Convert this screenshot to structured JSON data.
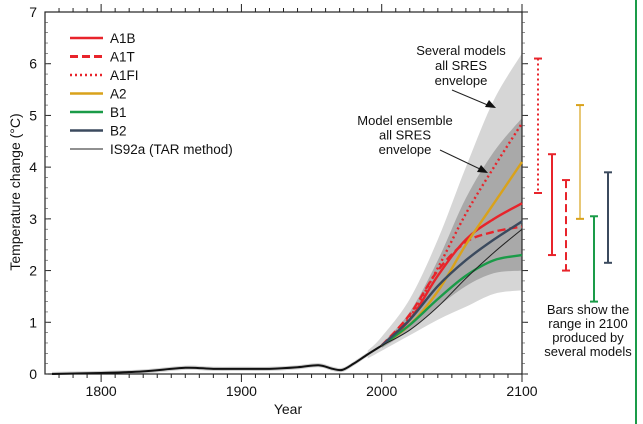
{
  "chart_data": {
    "type": "line",
    "title": "",
    "xlabel": "Year",
    "ylabel": "Temperature change (°C)",
    "xlim": [
      1760,
      2100
    ],
    "ylim": [
      0,
      7
    ],
    "xticks": [
      1800,
      1900,
      2000,
      2100
    ],
    "yticks": [
      0,
      1,
      2,
      3,
      4,
      5,
      6,
      7
    ],
    "legend_position": "top-left",
    "historical": {
      "x": [
        1765,
        1800,
        1830,
        1860,
        1880,
        1900,
        1920,
        1940,
        1955,
        1965,
        1972,
        1980,
        1990,
        2000
      ],
      "y": [
        0,
        0.02,
        0.05,
        0.12,
        0.1,
        0.1,
        0.1,
        0.13,
        0.17,
        0.1,
        0.08,
        0.2,
        0.38,
        0.55
      ]
    },
    "envelopes": [
      {
        "name": "Several models all SRES envelope",
        "color": "#d6d6d6",
        "x": [
          1990,
          2000,
          2020,
          2040,
          2060,
          2080,
          2100
        ],
        "upper": [
          0.45,
          0.72,
          1.45,
          2.6,
          4.0,
          5.3,
          6.2
        ],
        "lower": [
          0.3,
          0.45,
          0.75,
          1.05,
          1.3,
          1.55,
          1.62
        ]
      },
      {
        "name": "Model ensemble all SRES envelope",
        "color": "#a9a9a9",
        "x": [
          2000,
          2020,
          2040,
          2060,
          2080,
          2100
        ],
        "upper": [
          0.58,
          1.2,
          2.2,
          3.4,
          4.3,
          4.95
        ],
        "lower": [
          0.5,
          0.85,
          1.3,
          1.7,
          1.95,
          2.0
        ]
      }
    ],
    "x": [
      2000,
      2020,
      2040,
      2060,
      2080,
      2100
    ],
    "series": [
      {
        "name": "A1B",
        "color": "#e8242b",
        "style": "solid",
        "values": [
          0.55,
          1.05,
          1.9,
          2.6,
          3.0,
          3.3
        ]
      },
      {
        "name": "A1T",
        "color": "#e8242b",
        "style": "dashed",
        "values": [
          0.55,
          1.15,
          2.0,
          2.55,
          2.75,
          2.85
        ]
      },
      {
        "name": "A1FI",
        "color": "#e8242b",
        "style": "dotted",
        "values": [
          0.55,
          1.1,
          2.05,
          3.1,
          4.0,
          4.85
        ]
      },
      {
        "name": "A2",
        "color": "#d9a21b",
        "style": "solid",
        "values": [
          0.55,
          0.95,
          1.6,
          2.5,
          3.3,
          4.1
        ]
      },
      {
        "name": "B1",
        "color": "#1a9b48",
        "style": "solid",
        "values": [
          0.55,
          0.95,
          1.45,
          1.9,
          2.2,
          2.3
        ]
      },
      {
        "name": "B2",
        "color": "#3b4a5e",
        "style": "solid",
        "values": [
          0.55,
          1.05,
          1.7,
          2.2,
          2.6,
          2.95
        ]
      },
      {
        "name": "IS92a (TAR method)",
        "color": "#222222",
        "style": "thin",
        "values": [
          0.55,
          0.85,
          1.3,
          1.85,
          2.35,
          2.8
        ]
      }
    ],
    "legend_labels": [
      "A1B",
      "A1T",
      "A1FI",
      "A2",
      "B1",
      "B2",
      "IS92a (TAR method)"
    ],
    "range_bars_2100": [
      {
        "scenario": "A1FI",
        "color": "#e8242b",
        "style": "dotted",
        "low": 3.5,
        "high": 6.1
      },
      {
        "scenario": "A1B",
        "color": "#e8242b",
        "style": "solid",
        "low": 2.3,
        "high": 4.25
      },
      {
        "scenario": "A1T",
        "color": "#e8242b",
        "style": "dashed",
        "low": 2.0,
        "high": 3.75
      },
      {
        "scenario": "A2",
        "color": "#d9a21b",
        "style": "thin",
        "low": 3.0,
        "high": 5.2
      },
      {
        "scenario": "B1",
        "color": "#1a9b48",
        "style": "solid",
        "low": 1.4,
        "high": 3.05
      },
      {
        "scenario": "B2",
        "color": "#3b4a5e",
        "style": "solid",
        "low": 2.15,
        "high": 3.9
      }
    ],
    "annotations": {
      "outer": [
        "Several models",
        "all SRES",
        "envelope"
      ],
      "inner": [
        "Model ensemble",
        "all SRES",
        "envelope"
      ],
      "bars": [
        "Bars show the",
        "range in 2100",
        "produced by",
        "several models"
      ]
    }
  }
}
